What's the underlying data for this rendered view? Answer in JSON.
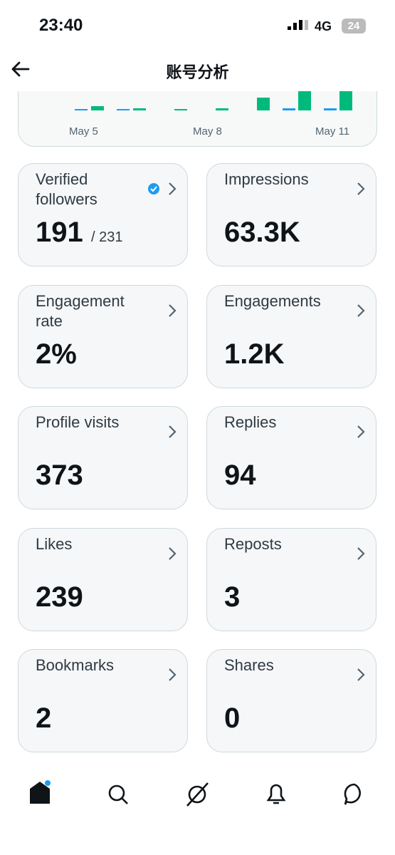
{
  "status_bar": {
    "time": "23:40",
    "network": "4G",
    "battery": "24"
  },
  "header": {
    "title": "账号分析"
  },
  "chart": {
    "x_labels": [
      "May 5",
      "May 8",
      "May 11"
    ]
  },
  "cards": [
    {
      "label": "Verified followers",
      "value": "191",
      "total": "/ 231"
    },
    {
      "label": "Impressions",
      "value": "63.3K"
    },
    {
      "label": "Engagement rate",
      "value": "2%"
    },
    {
      "label": "Engagements",
      "value": "1.2K"
    },
    {
      "label": "Profile visits",
      "value": "373"
    },
    {
      "label": "Replies",
      "value": "94"
    },
    {
      "label": "Likes",
      "value": "239"
    },
    {
      "label": "Reposts",
      "value": "3"
    },
    {
      "label": "Bookmarks",
      "value": "2"
    },
    {
      "label": "Shares",
      "value": "0"
    }
  ]
}
